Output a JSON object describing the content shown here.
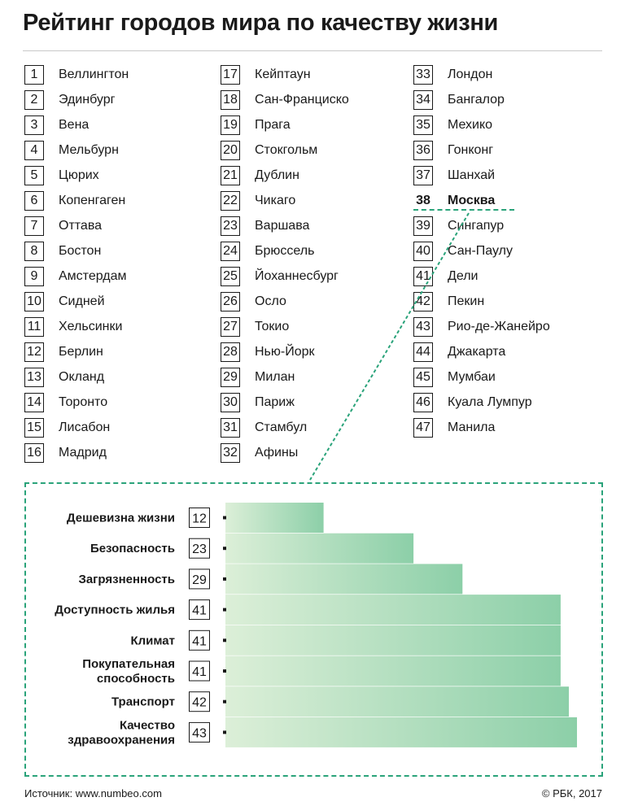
{
  "title": "Рейтинг городов мира по качеству жизни",
  "ranking": {
    "columns": [
      [
        {
          "rank": "1",
          "city": "Веллингтон"
        },
        {
          "rank": "2",
          "city": "Эдинбург"
        },
        {
          "rank": "3",
          "city": "Вена"
        },
        {
          "rank": "4",
          "city": "Мельбурн"
        },
        {
          "rank": "5",
          "city": "Цюрих"
        },
        {
          "rank": "6",
          "city": "Копенгаген"
        },
        {
          "rank": "7",
          "city": "Оттава"
        },
        {
          "rank": "8",
          "city": "Бостон"
        },
        {
          "rank": "9",
          "city": "Амстердам"
        },
        {
          "rank": "10",
          "city": "Сидней"
        },
        {
          "rank": "11",
          "city": "Хельсинки"
        },
        {
          "rank": "12",
          "city": "Берлин"
        },
        {
          "rank": "13",
          "city": "Окланд"
        },
        {
          "rank": "14",
          "city": "Торонто"
        },
        {
          "rank": "15",
          "city": "Лисабон"
        },
        {
          "rank": "16",
          "city": "Мадрид"
        }
      ],
      [
        {
          "rank": "17",
          "city": "Кейптаун"
        },
        {
          "rank": "18",
          "city": "Сан-Франциско"
        },
        {
          "rank": "19",
          "city": "Прага"
        },
        {
          "rank": "20",
          "city": "Стокгольм"
        },
        {
          "rank": "21",
          "city": "Дублин"
        },
        {
          "rank": "22",
          "city": "Чикаго"
        },
        {
          "rank": "23",
          "city": "Варшава"
        },
        {
          "rank": "24",
          "city": "Брюссель"
        },
        {
          "rank": "25",
          "city": "Йоханнесбург"
        },
        {
          "rank": "26",
          "city": "Осло"
        },
        {
          "rank": "27",
          "city": "Токио"
        },
        {
          "rank": "28",
          "city": "Нью-Йорк"
        },
        {
          "rank": "29",
          "city": "Милан"
        },
        {
          "rank": "30",
          "city": "Париж"
        },
        {
          "rank": "31",
          "city": "Стамбул"
        },
        {
          "rank": "32",
          "city": "Афины"
        }
      ],
      [
        {
          "rank": "33",
          "city": "Лондон"
        },
        {
          "rank": "34",
          "city": "Бангалор"
        },
        {
          "rank": "35",
          "city": "Мехико"
        },
        {
          "rank": "36",
          "city": "Гонконг"
        },
        {
          "rank": "37",
          "city": "Шанхай"
        },
        {
          "rank": "38",
          "city": "Москва",
          "highlight": true
        },
        {
          "rank": "39",
          "city": "Сингапур"
        },
        {
          "rank": "40",
          "city": "Сан-Паулу"
        },
        {
          "rank": "41",
          "city": "Дели"
        },
        {
          "rank": "42",
          "city": "Пекин"
        },
        {
          "rank": "43",
          "city": "Рио-де-Жанейро"
        },
        {
          "rank": "44",
          "city": "Джакарта"
        },
        {
          "rank": "45",
          "city": "Мумбаи"
        },
        {
          "rank": "46",
          "city": "Куала Лумпур"
        },
        {
          "rank": "47",
          "city": "Манила"
        }
      ]
    ]
  },
  "chart_data": {
    "type": "bar",
    "orientation": "horizontal",
    "categories": [
      [
        "Дешевизна жизни"
      ],
      [
        "Безопасность"
      ],
      [
        "Загрязненность"
      ],
      [
        "Доступность жилья"
      ],
      [
        "Климат"
      ],
      [
        "Покупательная",
        "способность"
      ],
      [
        "Транспорт"
      ],
      [
        "Качество",
        "здравоохранения"
      ]
    ],
    "values": [
      12,
      23,
      29,
      41,
      41,
      41,
      42,
      43
    ],
    "xlim": [
      0,
      43
    ],
    "colors": {
      "bar_start": "#dcefd8",
      "bar_end": "#8ccfa8",
      "accent": "#2aa37a"
    }
  },
  "footer": {
    "source": "Источник: www.numbeo.com",
    "copyright": "© РБК, 2017"
  }
}
